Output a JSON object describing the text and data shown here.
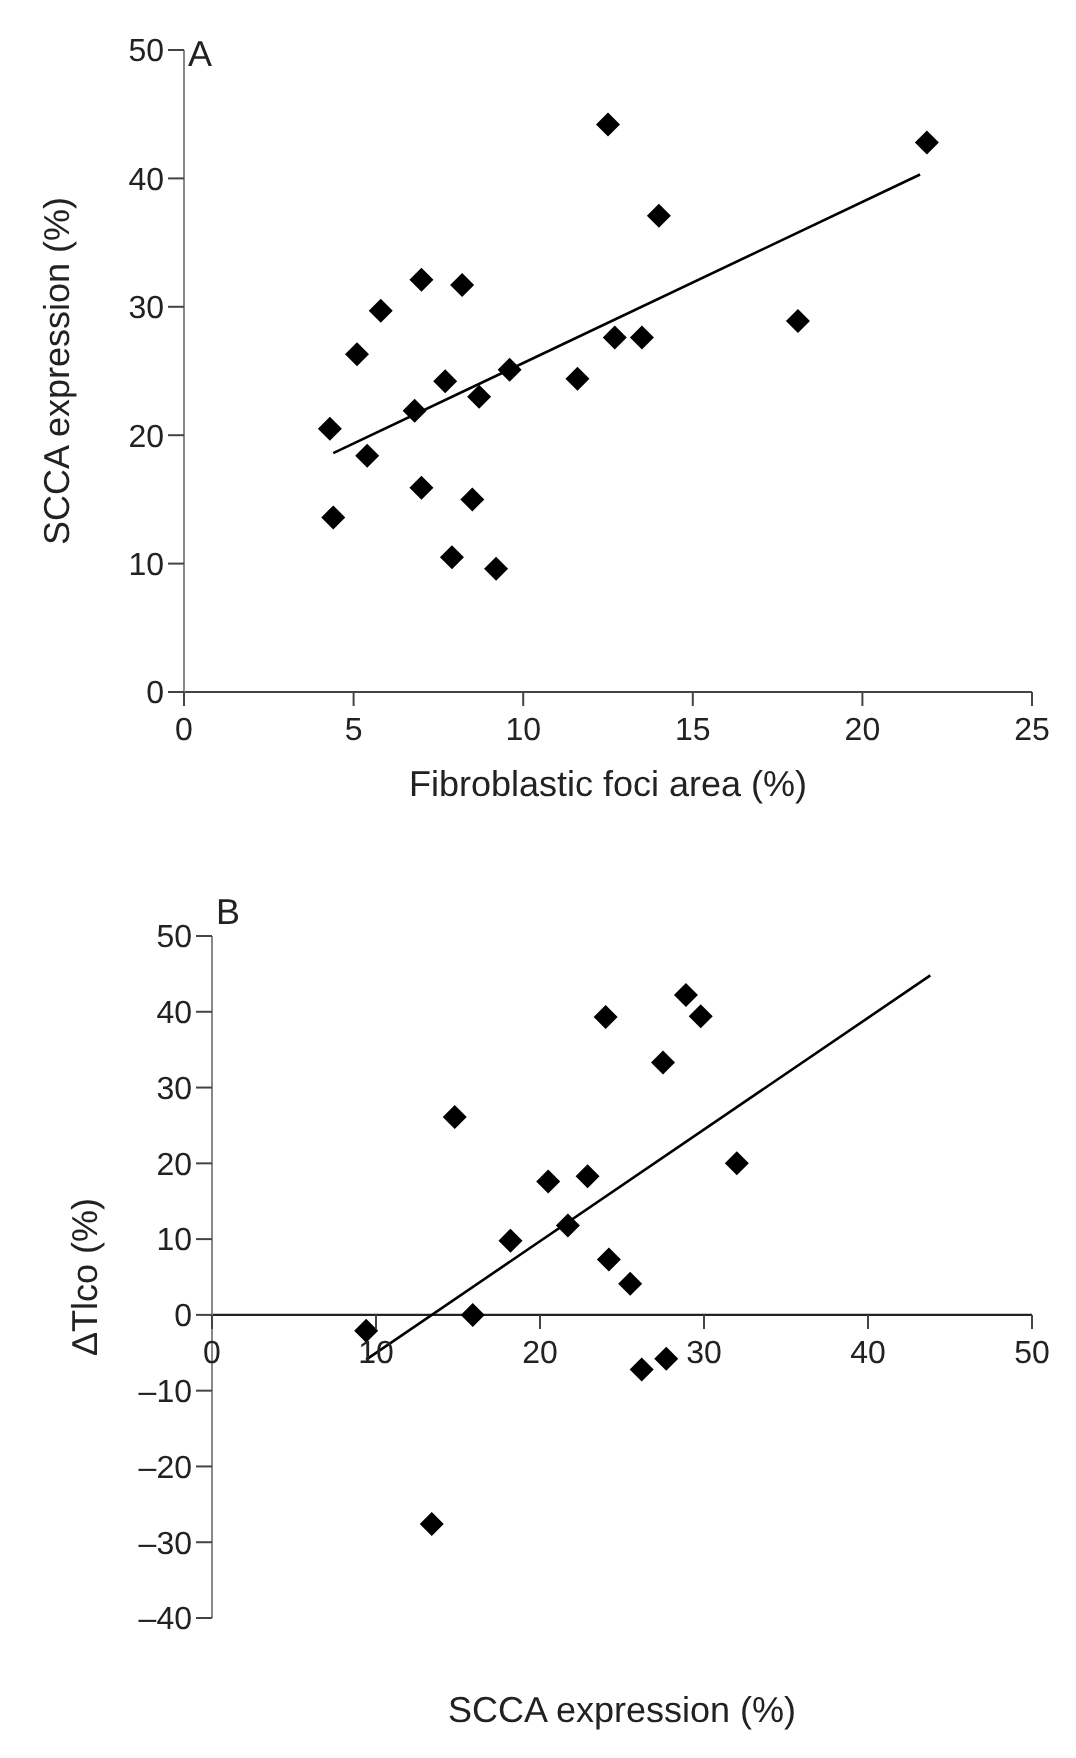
{
  "chart_data": [
    {
      "type": "scatter",
      "xlabel": "Fibroblastic foci area (%)",
      "ylabel": "SCCA expression (%)",
      "annotations": [
        "A"
      ],
      "xlim": [
        0,
        25
      ],
      "xticks": [
        0,
        5,
        10,
        15,
        20,
        25
      ],
      "ylim": [
        0,
        50
      ],
      "yticks": [
        0,
        10,
        20,
        30,
        40,
        50
      ],
      "grid": false,
      "marker": "diamond",
      "series": [
        {
          "color": "#000000",
          "x": [
            4.3,
            4.4,
            5.1,
            5.4,
            5.8,
            6.8,
            7.0,
            7.0,
            7.7,
            7.9,
            8.2,
            8.5,
            8.7,
            9.2,
            9.6,
            11.6,
            12.5,
            12.7,
            13.5,
            14.0,
            18.1,
            21.9
          ],
          "values": [
            20.5,
            13.6,
            26.3,
            18.4,
            29.7,
            21.9,
            32.1,
            15.9,
            24.2,
            10.5,
            31.7,
            15.0,
            23.0,
            9.6,
            25.1,
            24.4,
            44.2,
            27.6,
            27.6,
            37.1,
            28.9,
            42.8
          ]
        },
        {
          "type": "line",
          "color": "#000000",
          "marker": "none",
          "line_style": "solid",
          "x": [
            4.4,
            21.7
          ],
          "values": [
            18.6,
            40.3
          ]
        }
      ]
    },
    {
      "type": "scatter",
      "xlabel": "SCCA expression (%)",
      "ylabel": "ΔTlco (%)",
      "annotations": [
        "B"
      ],
      "xlim": [
        0,
        50
      ],
      "xticks": [
        0,
        10,
        20,
        30,
        40,
        50
      ],
      "ylim": [
        -40,
        50
      ],
      "yticks": [
        {
          "value": -40,
          "label": "–40"
        },
        {
          "value": -30,
          "label": "–30"
        },
        {
          "value": -20,
          "label": "–20"
        },
        {
          "value": -10,
          "label": "–10"
        },
        0,
        10,
        20,
        30,
        40,
        50
      ],
      "grid": false,
      "marker": "diamond",
      "series": [
        {
          "color": "#000000",
          "x": [
            9.4,
            13.4,
            14.8,
            15.9,
            18.2,
            20.5,
            21.7,
            22.9,
            24.0,
            24.2,
            25.5,
            26.2,
            27.5,
            27.7,
            28.9,
            29.8,
            32.0
          ],
          "values": [
            -2.1,
            -27.6,
            26.1,
            0,
            9.8,
            17.6,
            11.8,
            18.3,
            39.3,
            7.3,
            4.1,
            -7.2,
            33.3,
            -5.8,
            42.2,
            39.4,
            20.0
          ]
        },
        {
          "type": "line",
          "color": "#000000",
          "marker": "none",
          "line_style": "solid",
          "x": [
            9.4,
            43.8
          ],
          "values": [
            -5.9,
            44.8
          ]
        }
      ]
    }
  ]
}
